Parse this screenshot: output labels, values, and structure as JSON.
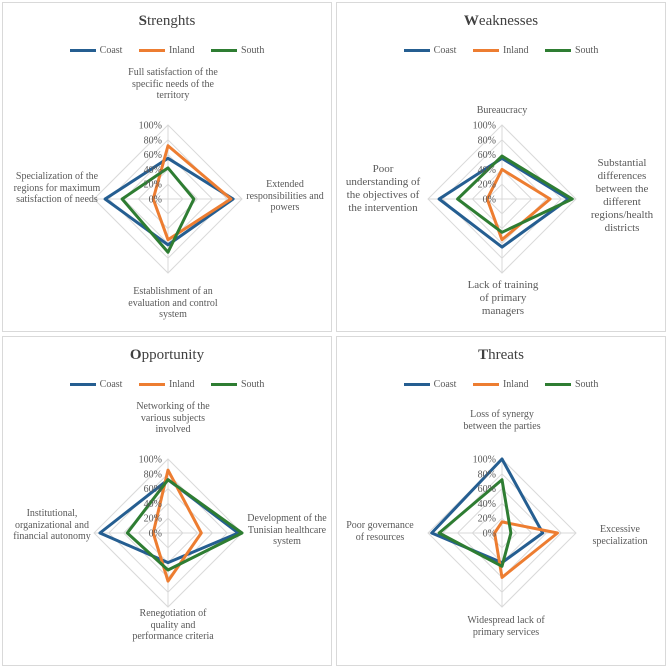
{
  "chart_data": [
    {
      "type": "radar",
      "title_initial": "S",
      "title_rest": "trenghts",
      "legend": [
        "Coast",
        "Inland",
        "South"
      ],
      "axes": [
        "Full satisfaction of the specific needs of the territory",
        "Extended responsibilities and powers",
        "Establishment of an evaluation and control system",
        "Specialization of the regions for maximum satisfaction of needs"
      ],
      "rlim": [
        0,
        100
      ],
      "ticks": [
        "0%",
        "20%",
        "40%",
        "60%",
        "80%",
        "100%"
      ],
      "series": [
        {
          "name": "Coast",
          "values": [
            55,
            88,
            62,
            85
          ]
        },
        {
          "name": "Inland",
          "values": [
            72,
            85,
            55,
            20
          ]
        },
        {
          "name": "South",
          "values": [
            42,
            35,
            72,
            62
          ]
        }
      ]
    },
    {
      "type": "radar",
      "title_initial": "W",
      "title_rest": "eaknesses",
      "legend": [
        "Coast",
        "Inland",
        "South"
      ],
      "axes": [
        "Bureaucracy",
        "Substantial differences between the different regions/health districts",
        "Lack of training of primary managers",
        "Poor understanding of the objectives of the intervention"
      ],
      "rlim": [
        0,
        100
      ],
      "ticks": [
        "0%",
        "20%",
        "40%",
        "60%",
        "80%",
        "100%"
      ],
      "series": [
        {
          "name": "Coast",
          "values": [
            55,
            90,
            65,
            85
          ]
        },
        {
          "name": "Inland",
          "values": [
            40,
            65,
            55,
            20
          ]
        },
        {
          "name": "South",
          "values": [
            58,
            95,
            45,
            60
          ]
        }
      ]
    },
    {
      "type": "radar",
      "title_initial": "O",
      "title_rest": "pportunity",
      "legend": [
        "Coast",
        "Inland",
        "South"
      ],
      "axes": [
        "Networking of the various subjects involved",
        "Development of the Tunisian healthcare system",
        "Renegotiation of quality and performance criteria",
        "Institutional, organizational and financial autonomy"
      ],
      "rlim": [
        0,
        100
      ],
      "ticks": [
        "0%",
        "20%",
        "40%",
        "60%",
        "80%",
        "100%"
      ],
      "series": [
        {
          "name": "Coast",
          "values": [
            72,
            95,
            40,
            92
          ]
        },
        {
          "name": "Inland",
          "values": [
            85,
            45,
            65,
            20
          ]
        },
        {
          "name": "South",
          "values": [
            72,
            100,
            50,
            55
          ]
        }
      ]
    },
    {
      "type": "radar",
      "title_initial": "T",
      "title_rest": "hreats",
      "legend": [
        "Coast",
        "Inland",
        "South"
      ],
      "axes": [
        "Loss of synergy between the parties",
        "Excessive specialization",
        "Widespread lack of primary services",
        "Poor governance of resources"
      ],
      "rlim": [
        0,
        100
      ],
      "ticks": [
        "0%",
        "20%",
        "40%",
        "60%",
        "80%",
        "100%"
      ],
      "series": [
        {
          "name": "Coast",
          "values": [
            100,
            55,
            40,
            95
          ]
        },
        {
          "name": "Inland",
          "values": [
            15,
            75,
            60,
            10
          ]
        },
        {
          "name": "South",
          "values": [
            72,
            12,
            45,
            85
          ]
        }
      ]
    }
  ],
  "colors": {
    "Coast": "#255e91",
    "Inland": "#ed7d31",
    "South": "#2e7d32",
    "grid": "#d9d9d9"
  }
}
